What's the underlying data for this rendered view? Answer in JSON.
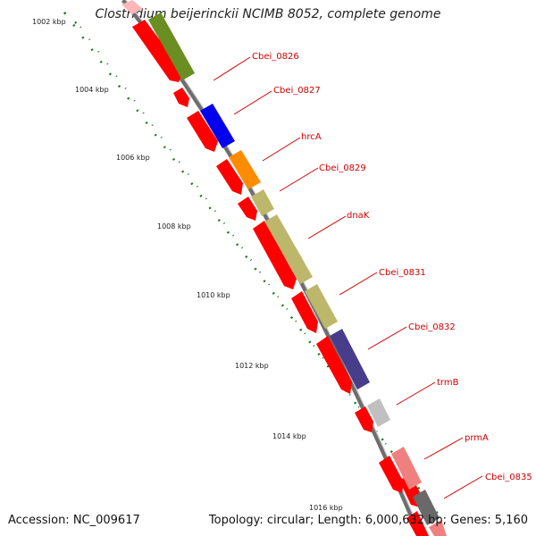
{
  "title": "Clostridium beijerinckii NCIMB 8052, complete genome",
  "footer": {
    "accession": "Accession: NC_009617",
    "info": "Topology: circular; Length: 6,000,632 bp; Genes: 5,160"
  },
  "ticks": [
    "1002 kbp",
    "1004 kbp",
    "1006 kbp",
    "1008 kbp",
    "1010 kbp",
    "1012 kbp",
    "1014 kbp",
    "1016 kbp"
  ],
  "gene_labels": [
    "Cbei_0826",
    "Cbei_0827",
    "hrcA",
    "Cbei_0829",
    "dnaK",
    "Cbei_0831",
    "Cbei_0832",
    "trmB",
    "prmA",
    "Cbei_0835"
  ],
  "colors": {
    "cds": "#ff0000",
    "label": "#d00000",
    "backbone": "#888888",
    "tick": "#1e7a1e",
    "olive": "#6b8e23",
    "blue": "#0000ee",
    "orange": "#ff8c00",
    "khaki": "#bdb76b",
    "slate": "#483d8b",
    "silver": "#c0c0c0",
    "pink": "#f08080",
    "dimgray": "#696969"
  }
}
